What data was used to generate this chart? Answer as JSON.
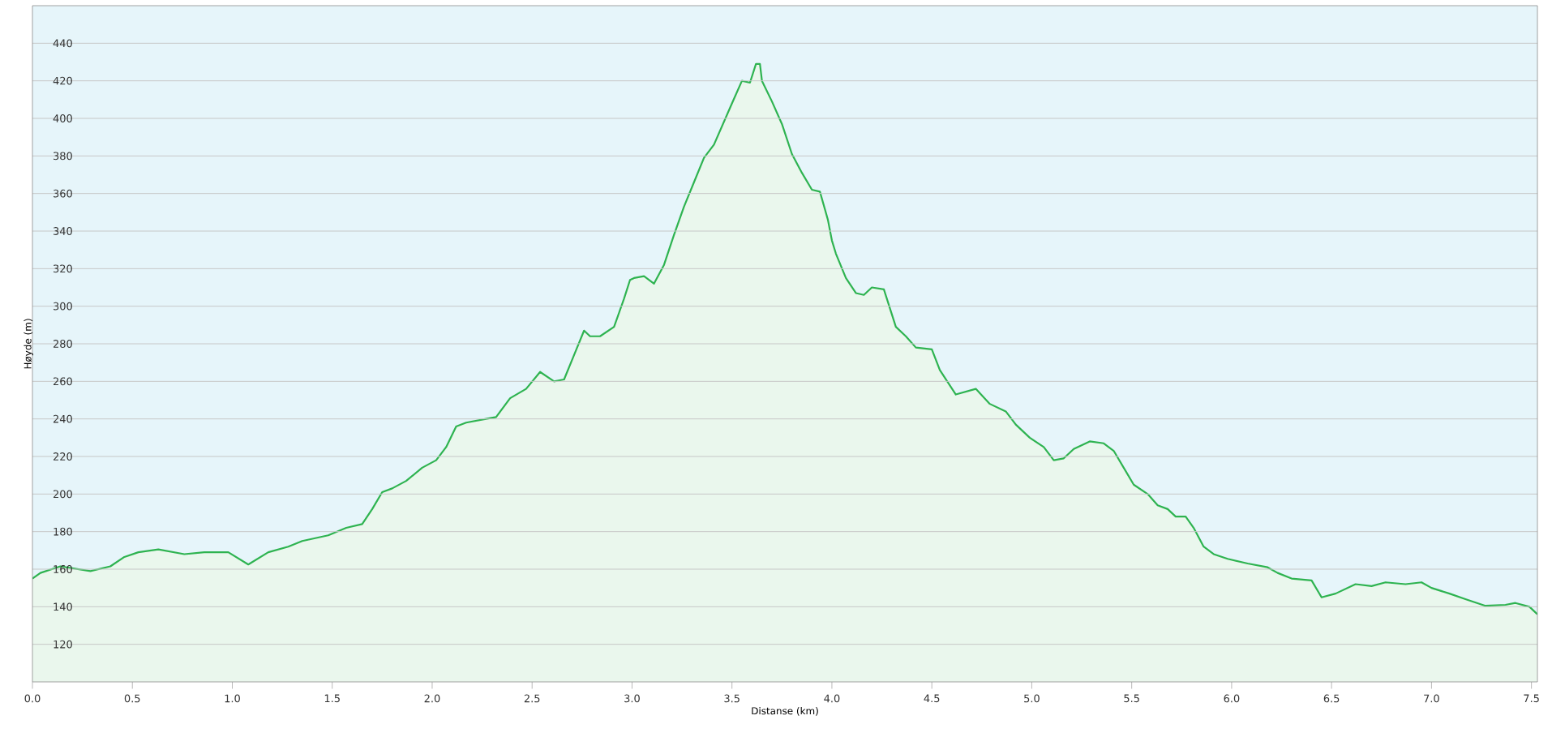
{
  "chart_data": {
    "type": "area",
    "xlabel": "Distanse  (km)",
    "ylabel": "Høyde (m)",
    "color": "#2eb350",
    "grid": "y",
    "xlim": [
      0,
      7.53
    ],
    "ylim": [
      100,
      460
    ],
    "xticks": [
      {
        "value": 0,
        "label": "0.0"
      },
      {
        "value": 0.5,
        "label": "0.5"
      },
      {
        "value": 1,
        "label": "1.0"
      },
      {
        "value": 1.5,
        "label": "1.5"
      },
      {
        "value": 2,
        "label": "2.0"
      },
      {
        "value": 2.5,
        "label": "2.5"
      },
      {
        "value": 3,
        "label": "3.0"
      },
      {
        "value": 3.5,
        "label": "3.5"
      },
      {
        "value": 4,
        "label": "4.0"
      },
      {
        "value": 4.5,
        "label": "4.5"
      },
      {
        "value": 5,
        "label": "5.0"
      },
      {
        "value": 5.5,
        "label": "5.5"
      },
      {
        "value": 6,
        "label": "6.0"
      },
      {
        "value": 6.5,
        "label": "6.5"
      },
      {
        "value": 7,
        "label": "7.0"
      },
      {
        "value": 7.5,
        "label": "7.5"
      }
    ],
    "yticks": [
      120,
      140,
      160,
      180,
      200,
      220,
      240,
      260,
      280,
      300,
      320,
      340,
      360,
      380,
      400,
      420,
      440
    ],
    "x": [
      0.0,
      0.04,
      0.14,
      0.29,
      0.39,
      0.46,
      0.53,
      0.63,
      0.76,
      0.86,
      0.98,
      1.08,
      1.18,
      1.28,
      1.35,
      1.48,
      1.57,
      1.65,
      1.7,
      1.75,
      1.8,
      1.87,
      1.95,
      2.02,
      2.07,
      2.12,
      2.17,
      2.27,
      2.32,
      2.39,
      2.47,
      2.54,
      2.61,
      2.66,
      2.71,
      2.76,
      2.79,
      2.84,
      2.91,
      2.96,
      2.99,
      3.01,
      3.06,
      3.11,
      3.16,
      3.21,
      3.26,
      3.31,
      3.36,
      3.41,
      3.5,
      3.55,
      3.59,
      3.62,
      3.64,
      3.65,
      3.7,
      3.75,
      3.8,
      3.85,
      3.9,
      3.94,
      3.98,
      4.0,
      4.02,
      4.07,
      4.12,
      4.16,
      4.2,
      4.26,
      4.32,
      4.37,
      4.42,
      4.5,
      4.54,
      4.62,
      4.72,
      4.79,
      4.87,
      4.92,
      4.99,
      5.06,
      5.11,
      5.16,
      5.21,
      5.29,
      5.36,
      5.41,
      5.46,
      5.51,
      5.58,
      5.63,
      5.68,
      5.72,
      5.77,
      5.81,
      5.86,
      5.91,
      5.98,
      6.08,
      6.18,
      6.23,
      6.3,
      6.4,
      6.45,
      6.52,
      6.62,
      6.7,
      6.77,
      6.87,
      6.95,
      7.0,
      7.09,
      7.17,
      7.27,
      7.37,
      7.42,
      7.49,
      7.53
    ],
    "values": [
      155,
      158,
      161.5,
      159,
      161.5,
      166.5,
      169,
      170.5,
      168,
      169,
      169,
      162.5,
      169,
      172,
      175,
      178,
      182,
      184,
      192,
      201,
      203,
      207,
      214,
      218,
      225,
      236,
      238,
      240,
      241,
      251,
      256,
      265,
      260,
      261,
      274,
      287,
      284,
      284,
      289,
      304,
      314,
      315,
      316,
      312,
      322,
      338,
      353,
      366,
      379,
      386,
      408,
      420,
      419,
      429,
      429,
      420,
      409,
      397,
      381,
      371,
      362,
      361,
      346,
      335,
      328,
      315,
      307,
      306,
      310,
      309,
      289,
      284,
      278,
      277,
      266,
      253,
      256,
      248,
      244,
      237,
      230,
      225,
      218,
      219,
      224,
      228,
      227,
      223,
      214,
      205,
      200,
      194,
      192,
      188,
      188,
      182,
      172,
      168,
      165.5,
      163,
      161,
      158,
      155,
      154,
      145,
      147,
      152,
      151,
      153,
      152,
      153,
      150,
      147,
      144,
      140.5,
      141,
      142,
      140,
      136
    ]
  }
}
